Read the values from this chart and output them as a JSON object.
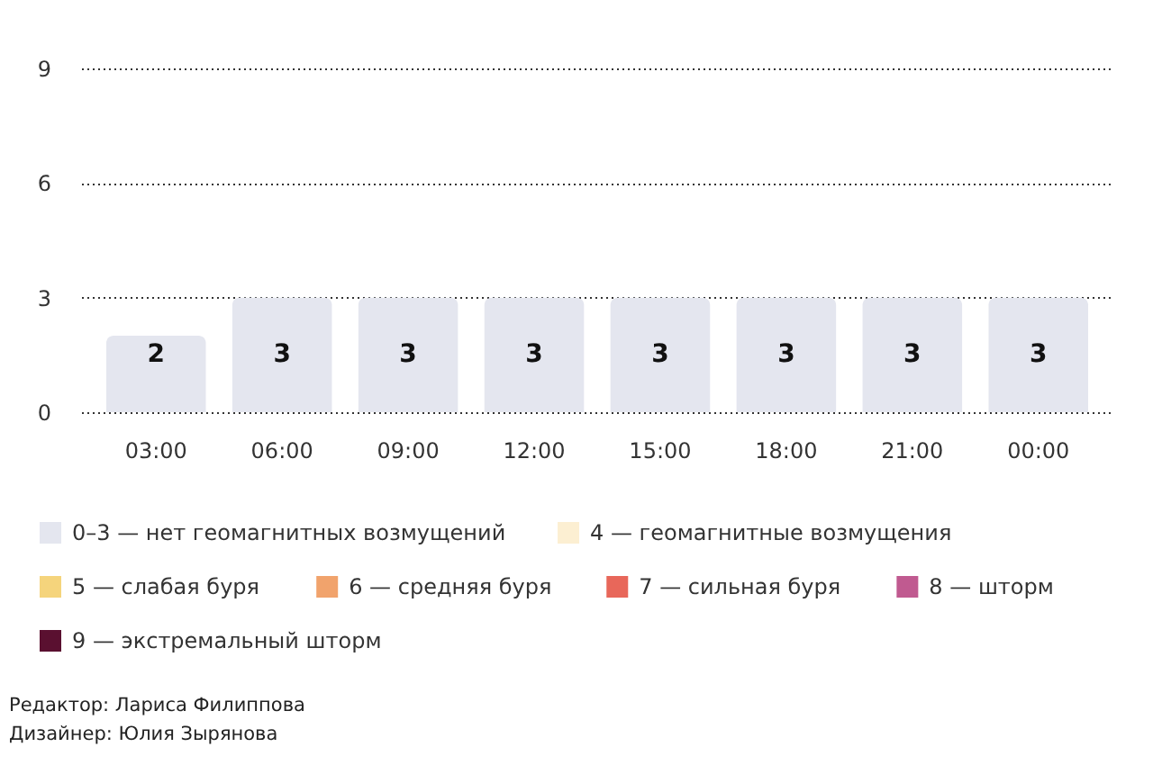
{
  "chart_data": {
    "type": "bar",
    "categories": [
      "03:00",
      "06:00",
      "09:00",
      "12:00",
      "15:00",
      "18:00",
      "21:00",
      "00:00"
    ],
    "series": [
      {
        "name": "0–3 — нет геомагнитных возмущений",
        "color": "#e4e6ef",
        "values": [
          2,
          3,
          3,
          3,
          3,
          3,
          3,
          3
        ]
      },
      {
        "name": "4 — геомагнитные возмущения",
        "color": "#fcefd2",
        "values": [
          null,
          null,
          null,
          null,
          null,
          null,
          null,
          null
        ]
      },
      {
        "name": "5 — слабая буря",
        "color": "#f5d47c",
        "values": [
          null,
          null,
          null,
          null,
          null,
          null,
          null,
          null
        ]
      },
      {
        "name": "6 — средняя буря",
        "color": "#f1a36c",
        "values": [
          null,
          null,
          null,
          null,
          null,
          null,
          null,
          null
        ]
      },
      {
        "name": "7 — сильная буря",
        "color": "#e8675a",
        "values": [
          null,
          null,
          null,
          null,
          null,
          null,
          null,
          null
        ]
      },
      {
        "name": "8 — шторм",
        "color": "#c05a90",
        "values": [
          null,
          null,
          null,
          null,
          null,
          null,
          null,
          null
        ]
      },
      {
        "name": "9 — экстремальный шторм",
        "color": "#5a1030",
        "values": [
          null,
          null,
          null,
          null,
          null,
          null,
          null,
          null
        ]
      }
    ],
    "stacked": true,
    "ylim": [
      0,
      9
    ],
    "yticks": [
      0,
      3,
      6,
      9
    ],
    "grid": "y",
    "legend": "bottom",
    "data_labels": true,
    "annotations": [
      "Редактор: Лариса Филиппова",
      "Дизайнер: Юлия Зырянова"
    ]
  }
}
